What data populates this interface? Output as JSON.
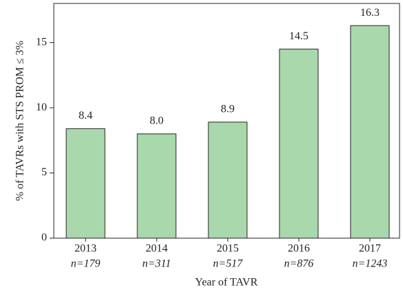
{
  "chart_data": {
    "type": "bar",
    "categories": [
      "2013",
      "2014",
      "2015",
      "2016",
      "2017"
    ],
    "category_notes": [
      "n=179",
      "n=311",
      "n=517",
      "n=876",
      "n=1243"
    ],
    "values": [
      8.4,
      8.0,
      8.9,
      14.5,
      16.3
    ],
    "value_labels": [
      "8.4",
      "8.0",
      "8.9",
      "14.5",
      "16.3"
    ],
    "color": "#a9d8ad",
    "ylabel": "% of TAVRs with STS PROM ≤ 3%",
    "xlabel": "Year of TAVR",
    "ylim": [
      0,
      18
    ],
    "yticks": [
      0,
      5,
      10,
      15
    ]
  }
}
